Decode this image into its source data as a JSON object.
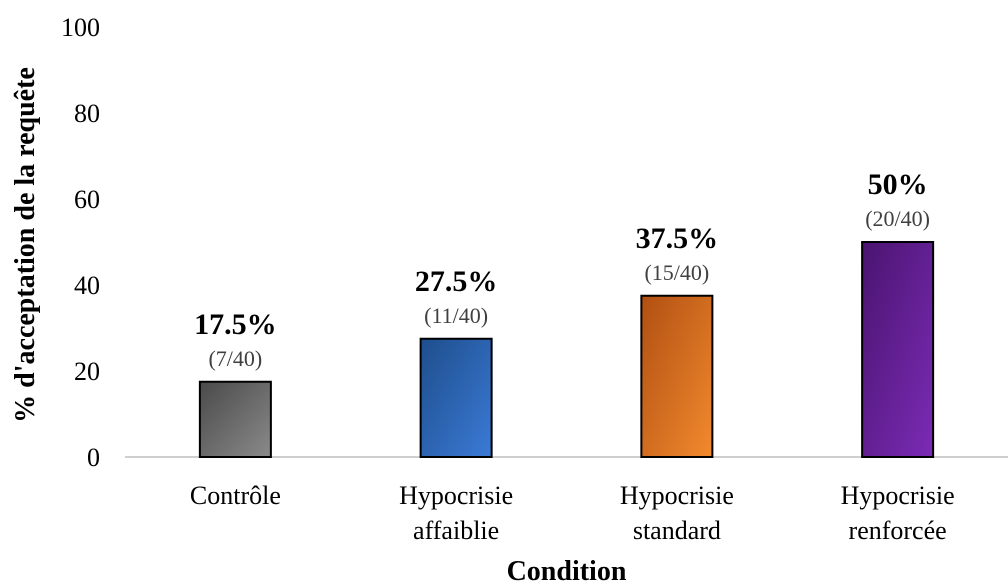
{
  "chart_data": {
    "type": "bar",
    "categories": [
      [
        "Contrôle"
      ],
      [
        "Hypocrisie",
        "affaiblie"
      ],
      [
        "Hypocrisie",
        "standard"
      ],
      [
        "Hypocrisie",
        "renforcée"
      ]
    ],
    "values": [
      17.5,
      27.5,
      37.5,
      50
    ],
    "data_labels": [
      "17.5%",
      "27.5%",
      "37.5%",
      "50%"
    ],
    "count_labels": [
      "(7/40)",
      "(11/40)",
      "(15/40)",
      "(20/40)"
    ],
    "colors": [
      [
        "#4a4a4a",
        "#8a8a8a"
      ],
      [
        "#1e4e8c",
        "#3b7ad6"
      ],
      [
        "#b04f12",
        "#f28a2e"
      ],
      [
        "#4a1470",
        "#7b2bb5"
      ]
    ],
    "xlabel": "Condition",
    "ylabel": "% d'acceptation de la requête",
    "ylim": [
      0,
      100
    ],
    "yticks": [
      0,
      20,
      40,
      60,
      80,
      100
    ],
    "grid": false,
    "legend": "none"
  }
}
